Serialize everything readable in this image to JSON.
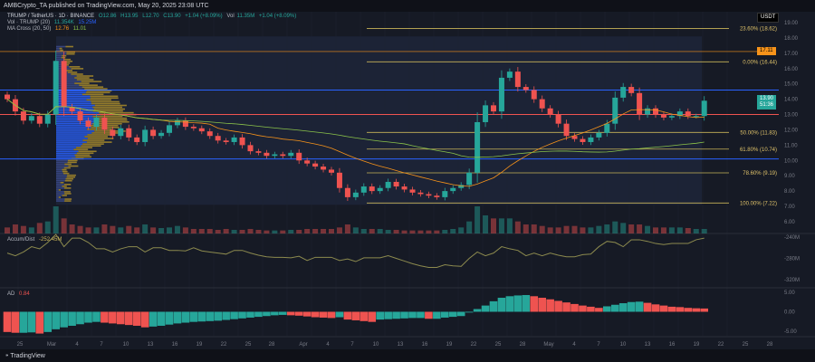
{
  "header": {
    "publisher": "AMBCrypto_TA published on TradingView.com, May 20, 2025 23:08 UTC"
  },
  "legend": {
    "symbol": "TRUMP / TetherUS · 1D · BINANCE",
    "ohlc": {
      "o": "O12.86",
      "h": "H13.95",
      "l": "L12.70",
      "c": "C13.90",
      "chg": "+1.04 (+8.09%)"
    },
    "vol_label": "Vol",
    "vol_value": "11.35M",
    "vol_chg": "+1.04 (+8.09%)",
    "vol_ma_label": "Vol · TRUMP (20)",
    "vol_ma_v1": "11.354K",
    "vol_ma_v2": "15.25M",
    "ma_label": "MA Cross (20, 50)",
    "ma_v1": "12.76",
    "ma_v2": "11.01",
    "accum_label": "Accum/Dist",
    "accum_value": "-252.45M",
    "ad_label": "AD",
    "ad_value": "0.84"
  },
  "price_axis": {
    "currency": "USDT",
    "ticks": [
      "19.00",
      "18.00",
      "17.00",
      "16.00",
      "15.00",
      "14.00",
      "13.00",
      "12.00",
      "11.00",
      "10.00",
      "9.00",
      "8.00",
      "7.00",
      "6.00"
    ],
    "badge_orange": "17.11",
    "badge_price": "13.90",
    "badge_countdown": "51:36"
  },
  "accum_axis": [
    "-240M",
    "-280M",
    "-320M"
  ],
  "ad_axis": [
    "5.00",
    "0.00",
    "-5.00"
  ],
  "time_axis": [
    "25",
    "Mar",
    "4",
    "7",
    "10",
    "13",
    "16",
    "19",
    "22",
    "25",
    "28",
    "Apr",
    "4",
    "7",
    "10",
    "13",
    "16",
    "19",
    "22",
    "25",
    "28",
    "May",
    "4",
    "7",
    "10",
    "13",
    "16",
    "19",
    "22",
    "25",
    "28"
  ],
  "fib": [
    {
      "label": "23.60% (18.62)",
      "price": 18.62
    },
    {
      "label": "0.00% (16.44)",
      "price": 16.44
    },
    {
      "label": "50.00% (11.83)",
      "price": 11.83
    },
    {
      "label": "61.80% (10.74)",
      "price": 10.74
    },
    {
      "label": "78.60% (9.19)",
      "price": 9.19
    },
    {
      "label": "100.00% (7.22)",
      "price": 7.22
    }
  ],
  "levels": {
    "blue_upper": 14.6,
    "red_mid": 13.0,
    "blue_lower": 10.1,
    "orange": 17.11
  },
  "colors": {
    "up": "#26a69a",
    "down": "#ef5350",
    "ma20": "#f7931a",
    "ma50": "#8bc34a",
    "fib": "#c9b458",
    "blue": "#2962ff",
    "accum": "#8c8a4e"
  },
  "chart_data": {
    "type": "candlestick",
    "start_date": "2025-02-23",
    "closes": [
      14.0,
      13.2,
      12.6,
      12.9,
      12.4,
      13.0,
      16.5,
      13.5,
      13.2,
      12.6,
      12.2,
      12.8,
      12.0,
      11.6,
      12.1,
      11.5,
      11.2,
      12.0,
      11.6,
      11.8,
      12.3,
      12.6,
      12.2,
      12.1,
      11.9,
      11.6,
      11.3,
      11.2,
      11.5,
      11.0,
      10.6,
      10.5,
      10.3,
      10.4,
      10.3,
      10.5,
      10.0,
      9.8,
      9.6,
      9.4,
      9.2,
      8.2,
      7.6,
      7.9,
      8.3,
      8.0,
      8.2,
      8.6,
      8.3,
      8.1,
      7.9,
      7.8,
      7.7,
      7.6,
      8.0,
      8.2,
      8.4,
      9.2,
      12.5,
      13.6,
      13.2,
      15.4,
      15.8,
      14.8,
      14.6,
      14.0,
      13.4,
      13.0,
      12.4,
      11.6,
      11.4,
      11.2,
      11.5,
      11.8,
      12.4,
      14.1,
      14.8,
      14.4,
      13.0,
      13.4,
      13.0,
      12.8,
      12.9,
      13.2,
      12.9,
      12.9,
      13.9
    ],
    "accum": [
      -270,
      -275,
      -268,
      -258,
      -262,
      -250,
      -235,
      -258,
      -242,
      -242,
      -250,
      -262,
      -262,
      -268,
      -262,
      -258,
      -258,
      -268,
      -260,
      -260,
      -265,
      -265,
      -266,
      -260,
      -266,
      -268,
      -270,
      -272,
      -265,
      -265,
      -270,
      -274,
      -277,
      -278,
      -278,
      -279,
      -276,
      -284,
      -278,
      -278,
      -278,
      -284,
      -281,
      -286,
      -279,
      -279,
      -279,
      -275,
      -280,
      -285,
      -290,
      -294,
      -297,
      -297,
      -292,
      -294,
      -295,
      -280,
      -268,
      -275,
      -270,
      -258,
      -262,
      -265,
      -275,
      -270,
      -275,
      -270,
      -274,
      -277,
      -277,
      -273,
      -272,
      -258,
      -248,
      -250,
      -258,
      -245,
      -245,
      -248,
      -252,
      -254,
      -252,
      -252,
      -252,
      -245,
      -242
    ],
    "ad": [
      -5.2,
      -5.4,
      -5.4,
      -5.3,
      -5.6,
      -5.2,
      -4.5,
      -4.0,
      -3.6,
      -3.2,
      -2.8,
      -2.6,
      -2.8,
      -3.0,
      -3.2,
      -3.4,
      -3.6,
      -4.0,
      -3.8,
      -3.6,
      -3.3,
      -3.0,
      -2.8,
      -2.6,
      -2.5,
      -2.4,
      -2.3,
      -2.1,
      -1.9,
      -1.7,
      -1.5,
      -1.3,
      -1.1,
      -0.9,
      -0.8,
      -0.9,
      -1.0,
      -1.2,
      -1.4,
      -1.5,
      -1.6,
      -1.4,
      -2.0,
      -2.2,
      -2.4,
      -2.6,
      -2.0,
      -1.9,
      -1.8,
      -1.7,
      -1.6,
      -1.6,
      -1.8,
      -1.8,
      -1.5,
      -1.3,
      -1.1,
      -0.2,
      0.7,
      1.6,
      2.7,
      3.6,
      4.0,
      4.2,
      4.3,
      4.0,
      3.6,
      3.2,
      2.8,
      2.4,
      2.0,
      1.6,
      1.3,
      1.0,
      1.4,
      1.8,
      2.2,
      2.5,
      2.6,
      2.3,
      1.9,
      1.6,
      1.3,
      1.2,
      1.0,
      0.9,
      0.84
    ],
    "volume": [
      2,
      3,
      2.5,
      2,
      3.5,
      4,
      9,
      5,
      3,
      2.5,
      2,
      2,
      3,
      2.5,
      2,
      2.5,
      2,
      3,
      2,
      1.8,
      2,
      2.5,
      2,
      1.5,
      1.5,
      1.5,
      1.2,
      1.5,
      1.2,
      1.2,
      1.5,
      1.2,
      1,
      1,
      1,
      1.2,
      1.2,
      1.5,
      1.5,
      1.5,
      1.5,
      2,
      3,
      2,
      1.5,
      1.5,
      1.5,
      1.2,
      1.2,
      1,
      1,
      1,
      1,
      1,
      1.2,
      1.5,
      2,
      4,
      9,
      6,
      5,
      5,
      5,
      4,
      3,
      3,
      2.5,
      2,
      2,
      2.5,
      2.5,
      2,
      2,
      2.5,
      3,
      4,
      3.5,
      3,
      3,
      2.5,
      2,
      2,
      2,
      2,
      1.8,
      1.5,
      1.5
    ],
    "ylim": [
      5.5,
      19.5
    ]
  }
}
